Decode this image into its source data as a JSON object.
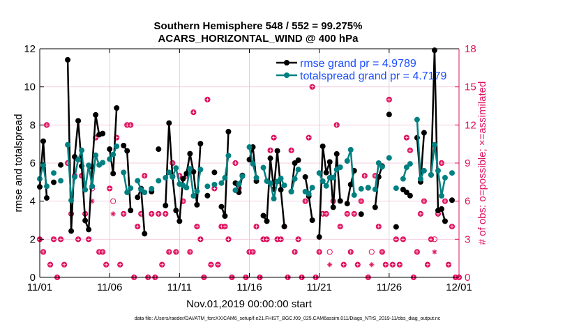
{
  "chart_data": {
    "type": "line",
    "title": [
      "Southern Hemisphere 548 / 552 = 99.275%",
      "ACARS_HORIZONTAL_WIND @ 400 hPa"
    ],
    "xlabel": "Nov.01,2019 00:00:00 start",
    "ylabel": "rmse and totalspread",
    "ylabel_right": "# of obs: o=possible; ×=assimilated",
    "footer": "data file: /Users/raeder/DAI/ATM_forcXX/CAM6_setup/f.e21.FHIST_BGC.f09_025.CAM6assim.011/Diags_NTrS_2019-11/obs_diag_output.nc",
    "xlim": [
      "2019-11-01 00:00",
      "2019-12-01 00:00"
    ],
    "ylim": [
      0,
      12
    ],
    "ylim_right": [
      0,
      18
    ],
    "x_ticks": [
      {
        "at": "2019-11-01 00:00",
        "label": "11/01"
      },
      {
        "at": "2019-11-06 00:00",
        "label": "11/06"
      },
      {
        "at": "2019-11-11 00:00",
        "label": "11/11"
      },
      {
        "at": "2019-11-16 00:00",
        "label": "11/16"
      },
      {
        "at": "2019-11-21 00:00",
        "label": "11/21"
      },
      {
        "at": "2019-11-26 00:00",
        "label": "11/26"
      },
      {
        "at": "2019-12-01 00:00",
        "label": "12/01"
      }
    ],
    "y_ticks": [
      "0",
      "2",
      "4",
      "6",
      "8",
      "10",
      "12"
    ],
    "y_ticks_right": [
      "0",
      "3",
      "6",
      "9",
      "12",
      "15",
      "18"
    ],
    "grid": true,
    "legend_position": "top-right",
    "colors": {
      "rmse": "#000000",
      "totalspread": "#008080",
      "obs": "#e0115f",
      "legend_text": "#1a4cff",
      "grid": "#f5cde0",
      "vgrid": "#d6d6d6"
    },
    "x": [
      "2019-11-01 00:00",
      "2019-11-01 06:00",
      "2019-11-01 12:00",
      "2019-11-01 18:00",
      "2019-11-02 00:00",
      "2019-11-02 06:00",
      "2019-11-02 12:00",
      "2019-11-02 18:00",
      "2019-11-03 00:00",
      "2019-11-03 06:00",
      "2019-11-03 12:00",
      "2019-11-03 18:00",
      "2019-11-04 00:00",
      "2019-11-04 06:00",
      "2019-11-04 12:00",
      "2019-11-04 18:00",
      "2019-11-05 00:00",
      "2019-11-05 06:00",
      "2019-11-05 12:00",
      "2019-11-05 18:00",
      "2019-11-06 00:00",
      "2019-11-06 06:00",
      "2019-11-06 12:00",
      "2019-11-06 18:00",
      "2019-11-07 00:00",
      "2019-11-07 06:00",
      "2019-11-07 12:00",
      "2019-11-07 18:00",
      "2019-11-08 00:00",
      "2019-11-08 06:00",
      "2019-11-08 12:00",
      "2019-11-08 18:00",
      "2019-11-09 00:00",
      "2019-11-09 06:00",
      "2019-11-09 12:00",
      "2019-11-09 18:00",
      "2019-11-10 00:00",
      "2019-11-10 06:00",
      "2019-11-10 12:00",
      "2019-11-10 18:00",
      "2019-11-11 00:00",
      "2019-11-11 06:00",
      "2019-11-11 12:00",
      "2019-11-11 18:00",
      "2019-11-12 00:00",
      "2019-11-12 06:00",
      "2019-11-12 12:00",
      "2019-11-12 18:00",
      "2019-11-13 00:00",
      "2019-11-13 06:00",
      "2019-11-13 12:00",
      "2019-11-13 18:00",
      "2019-11-14 00:00",
      "2019-11-14 06:00",
      "2019-11-14 12:00",
      "2019-11-14 18:00",
      "2019-11-15 00:00",
      "2019-11-15 06:00",
      "2019-11-15 12:00",
      "2019-11-15 18:00",
      "2019-11-16 00:00",
      "2019-11-16 06:00",
      "2019-11-16 12:00",
      "2019-11-16 18:00",
      "2019-11-17 00:00",
      "2019-11-17 06:00",
      "2019-11-17 12:00",
      "2019-11-17 18:00",
      "2019-11-18 00:00",
      "2019-11-18 06:00",
      "2019-11-18 12:00",
      "2019-11-18 18:00",
      "2019-11-19 00:00",
      "2019-11-19 06:00",
      "2019-11-19 12:00",
      "2019-11-19 18:00",
      "2019-11-20 00:00",
      "2019-11-20 06:00",
      "2019-11-20 12:00",
      "2019-11-20 18:00",
      "2019-11-21 00:00",
      "2019-11-21 06:00",
      "2019-11-21 12:00",
      "2019-11-21 18:00",
      "2019-11-22 00:00",
      "2019-11-22 06:00",
      "2019-11-22 12:00",
      "2019-11-22 18:00",
      "2019-11-23 00:00",
      "2019-11-23 06:00",
      "2019-11-23 12:00",
      "2019-11-23 18:00",
      "2019-11-24 00:00",
      "2019-11-24 06:00",
      "2019-11-24 12:00",
      "2019-11-24 18:00",
      "2019-11-25 00:00",
      "2019-11-25 06:00",
      "2019-11-25 12:00",
      "2019-11-25 18:00",
      "2019-11-26 00:00",
      "2019-11-26 06:00",
      "2019-11-26 12:00",
      "2019-11-26 18:00",
      "2019-11-27 00:00",
      "2019-11-27 06:00",
      "2019-11-27 12:00",
      "2019-11-27 18:00",
      "2019-11-28 00:00",
      "2019-11-28 06:00",
      "2019-11-28 12:00",
      "2019-11-28 18:00",
      "2019-11-29 00:00",
      "2019-11-29 06:00",
      "2019-11-29 12:00",
      "2019-11-29 18:00",
      "2019-11-30 00:00",
      "2019-11-30 06:00",
      "2019-11-30 12:00",
      "2019-11-30 18:00",
      "2019-12-01 00:00"
    ],
    "series": [
      {
        "name": "rmse grand pr = 4.9789",
        "axis": "left",
        "values": [
          4.75,
          7.15,
          4.17,
          null,
          4.99,
          null,
          5.9,
          null,
          11.42,
          2.43,
          6.33,
          8.22,
          5.84,
          2.98,
          2.51,
          5.8,
          8.53,
          7.49,
          7.55,
          null,
          6.73,
          5.45,
          8.89,
          null,
          6.92,
          6.64,
          3.51,
          null,
          4.2,
          4.66,
          2.29,
          null,
          4.5,
          null,
          6.73,
          null,
          3.77,
          8.1,
          5.3,
          3.51,
          2.95,
          5.17,
          5.45,
          6.49,
          5.54,
          3.81,
          7.02,
          null,
          4.29,
          null,
          5.51,
          null,
          3.71,
          3.22,
          7.65,
          null,
          4.95,
          4.46,
          5.35,
          null,
          6.18,
          6.84,
          5.05,
          null,
          3.24,
          2.95,
          6.25,
          4.62,
          6.64,
          4.6,
          2.67,
          null,
          4.5,
          6.0,
          6.15,
          null,
          5.27,
          4.26,
          3.0,
          null,
          2.12,
          6.88,
          5.5,
          6.06,
          3.68,
          6.48,
          4.01,
          null,
          3.87,
          4.87,
          5.6,
          null,
          3.32,
          null,
          4.7,
          null,
          3.68,
          5.27,
          5.84,
          null,
          8.55,
          null,
          2.65,
          null,
          4.61,
          4.46,
          4.29,
          null,
          7.33,
          5.01,
          7.59,
          null,
          5.38,
          11.92,
          3.51,
          3.59,
          2.95,
          null,
          4.05,
          null,
          null
        ]
      },
      {
        "name": "totalspread grand pr = 4.7179",
        "axis": "left",
        "values": [
          5.17,
          5.9,
          4.78,
          null,
          5.48,
          null,
          5.07,
          null,
          6.96,
          4.04,
          5.27,
          6.18,
          6.67,
          4.6,
          5.88,
          4.78,
          6.41,
          5.9,
          6.02,
          null,
          6.21,
          6.45,
          6.88,
          null,
          5.51,
          4.46,
          4.68,
          null,
          5.07,
          4.6,
          4.46,
          null,
          4.65,
          null,
          5.07,
          null,
          5.23,
          5.51,
          5.27,
          5.74,
          4.9,
          4.83,
          4.71,
          5.7,
          4.28,
          4.52,
          5.66,
          null,
          4.78,
          null,
          4.87,
          null,
          4.95,
          5.23,
          6.39,
          null,
          4.57,
          4.9,
          5.31,
          null,
          6.84,
          5.96,
          5.23,
          null,
          5.76,
          5.05,
          4.95,
          4.13,
          5.03,
          5.19,
          4.83,
          null,
          4.5,
          5.17,
          5.66,
          null,
          4.5,
          4.38,
          4.71,
          null,
          5.48,
          5.05,
          4.8,
          5.23,
          5.23,
          5.66,
          5.78,
          null,
          6.11,
          6.7,
          4.32,
          null,
          4.65,
          null,
          4.71,
          null,
          4.62,
          6.0,
          5.8,
          null,
          6.27,
          null,
          4.68,
          null,
          5.17,
          5.78,
          5.96,
          null,
          8.28,
          5.17,
          5.6,
          null,
          5.38,
          6.96,
          5.6,
          4.28,
          5.23,
          null,
          5.48,
          null,
          null
        ]
      },
      {
        "name": "possible",
        "axis": "right",
        "marker": "o",
        "values": [
          3,
          2,
          12,
          1,
          3,
          0,
          3,
          1,
          9,
          5,
          8,
          3,
          8,
          5,
          3,
          7,
          11,
          2,
          2,
          1,
          7,
          6,
          11,
          1,
          5,
          12,
          12,
          0,
          4,
          5,
          8,
          0,
          5,
          0,
          5,
          1,
          5,
          2,
          9,
          2,
          8,
          6,
          8,
          2,
          13,
          4,
          3,
          0,
          14,
          1,
          7,
          1,
          4,
          4,
          3,
          0,
          9,
          7,
          8,
          0,
          2,
          2,
          4,
          0,
          3,
          3,
          10,
          11,
          3,
          3,
          4,
          0,
          10,
          2,
          3,
          0,
          6,
          11,
          15,
          0,
          2,
          5,
          5,
          2,
          6,
          12,
          4,
          1,
          5,
          2,
          5,
          1,
          6,
          8,
          0,
          2,
          8,
          4,
          2,
          1,
          14,
          1,
          3,
          1,
          3,
          11,
          10,
          0,
          2,
          5,
          6,
          1,
          3,
          3,
          5,
          9,
          6,
          1,
          4,
          0,
          0
        ]
      },
      {
        "name": "assimilated",
        "axis": "right",
        "marker": "*",
        "values": [
          3,
          2,
          12,
          1,
          3,
          0,
          3,
          1,
          9,
          5,
          8,
          3,
          8,
          5,
          3,
          6,
          11,
          2,
          2,
          1,
          7,
          5,
          11,
          1,
          5,
          12,
          12,
          0,
          4,
          5,
          8,
          0,
          5,
          0,
          5,
          1,
          5,
          2,
          9,
          2,
          8,
          6,
          8,
          2,
          13,
          4,
          3,
          0,
          14,
          1,
          7,
          1,
          4,
          4,
          3,
          0,
          9,
          7,
          8,
          0,
          2,
          2,
          4,
          0,
          3,
          3,
          10,
          11,
          3,
          3,
          4,
          0,
          10,
          2,
          3,
          0,
          6,
          11,
          15,
          0,
          2,
          5,
          5,
          1,
          6,
          12,
          4,
          1,
          5,
          2,
          5,
          1,
          6,
          8,
          0,
          1,
          8,
          4,
          2,
          1,
          14,
          1,
          3,
          1,
          3,
          11,
          10,
          0,
          2,
          5,
          6,
          1,
          3,
          2,
          5,
          9,
          6,
          1,
          4,
          0,
          0
        ]
      }
    ]
  }
}
